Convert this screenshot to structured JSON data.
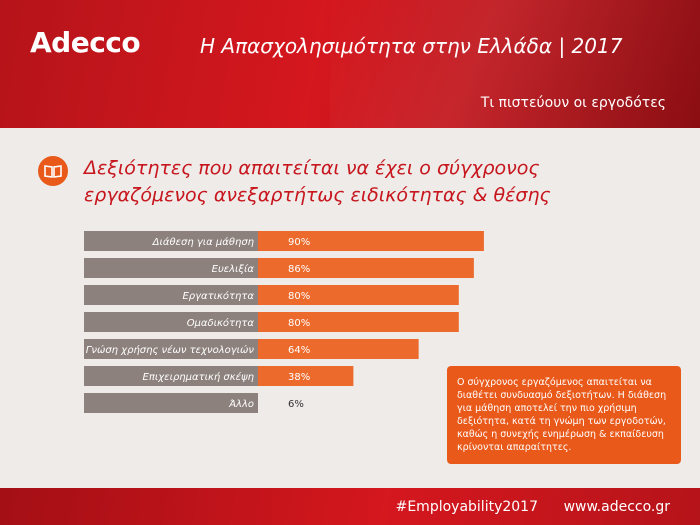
{
  "header": {
    "logo": "Adecco",
    "title": "Η Απασχολησιμότητα στην Ελλάδα | 2017",
    "subtitle": "Τι πιστεύουν οι εργοδότες"
  },
  "section": {
    "title_line1": "Δεξιότητες που απαιτείται να έχει ο σύγχρονος",
    "title_line2": "εργαζόμενος ανεξαρτήτως ειδικότητας & θέσης"
  },
  "chart_data": {
    "type": "bar",
    "orientation": "horizontal",
    "categories": [
      "Διάθεση για μάθηση",
      "Ευελιξία",
      "Εργατικότητα",
      "Ομαδικότητα",
      "Γνώση χρήσης νέων τεχνολογιών",
      "Επιχειρηματική σκέψη",
      "Άλλο"
    ],
    "values": [
      90,
      86,
      80,
      80,
      64,
      38,
      6
    ],
    "value_labels": [
      "90%",
      "86%",
      "80%",
      "80%",
      "64%",
      "38%",
      "6%"
    ],
    "unit": "%",
    "xlim": [
      0,
      100
    ],
    "grid": false,
    "colors": {
      "bar": "#ec6a2c",
      "label_box": "#8c817d",
      "value_dark": "#333333"
    }
  },
  "note": {
    "text": "Ο σύγχρονος εργαζόμενος απαιτείται να διαθέτει συνδυασμό δεξιοτήτων. Η διάθεση για μάθηση αποτελεί την πιο χρήσιμη δεξιότητα, κατά τη γνώμη των εργοδοτών, καθώς η συνεχής ενημέρωση & εκπαίδευση κρίνονται απαραίτητες."
  },
  "footer": {
    "hashtag": "#Employability2017",
    "url": "www.adecco.gr"
  },
  "colors": {
    "brand_red": "#d5171e",
    "accent_orange": "#e8591a",
    "background": "#eeebe9"
  }
}
